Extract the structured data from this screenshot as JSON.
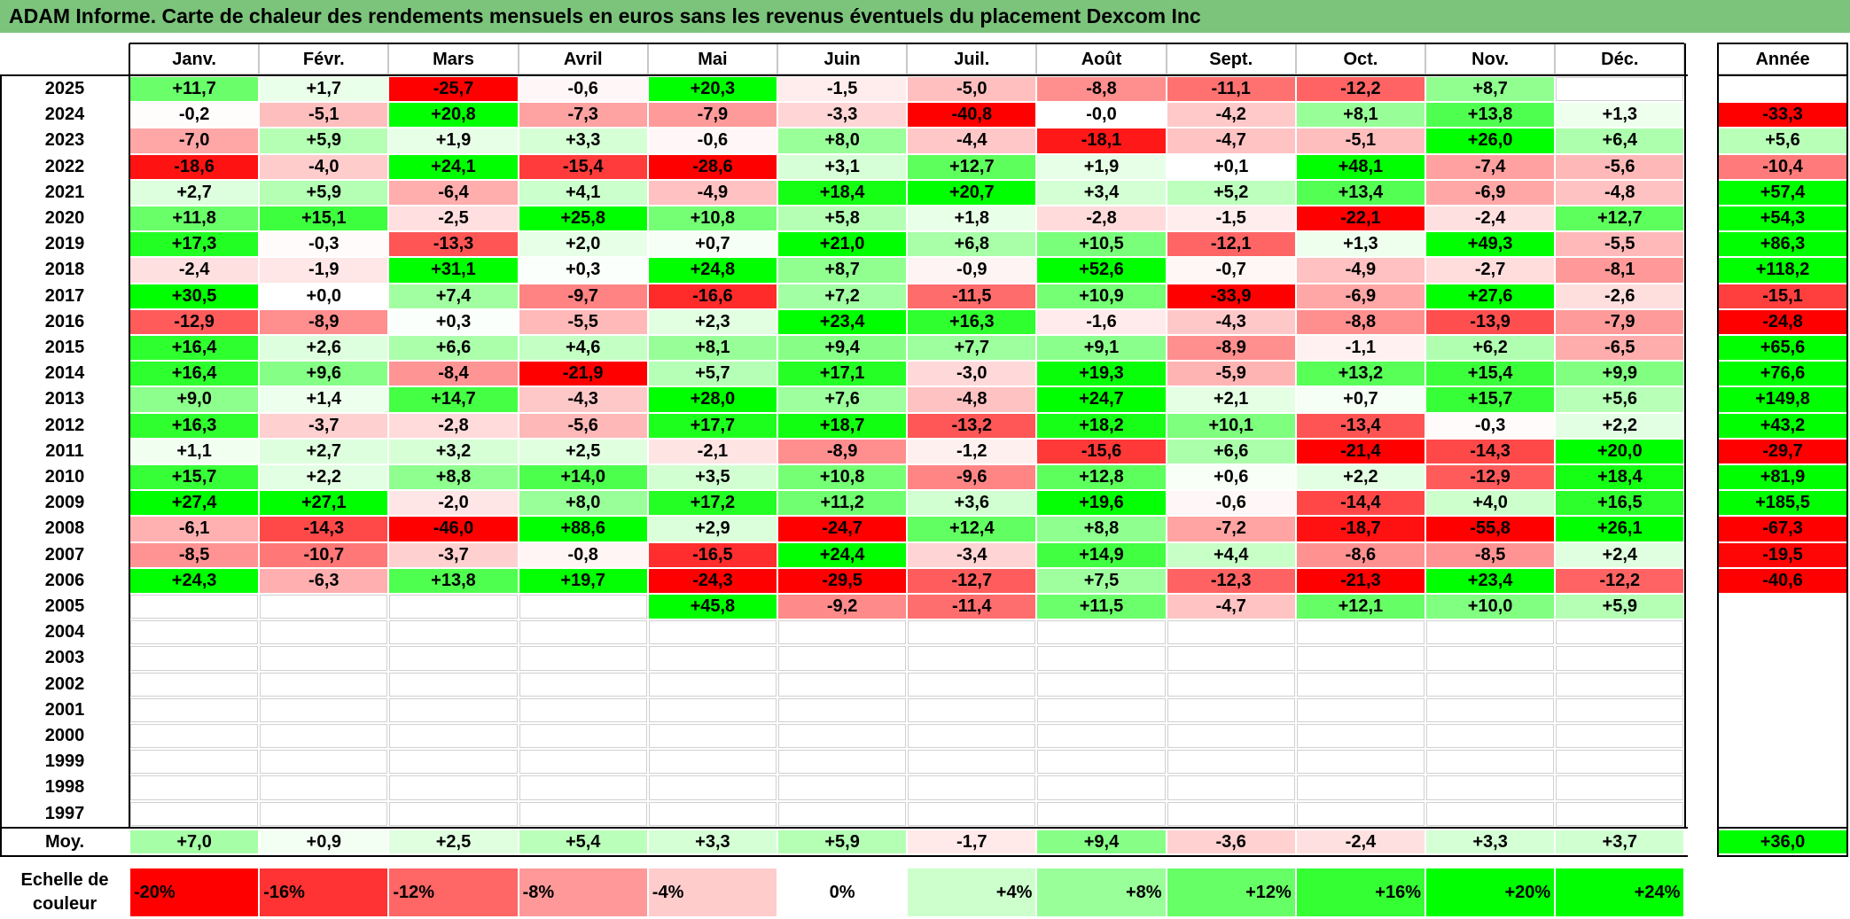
{
  "title": "ADAM Informe. Carte de chaleur des rendements mensuels en euros sans les revenus éventuels du placement Dexcom Inc",
  "chart_data": {
    "type": "heatmap",
    "title": "ADAM Informe. Carte de chaleur des rendements mensuels en euros sans les revenus éventuels du placement Dexcom Inc",
    "months": [
      "Janv.",
      "Févr.",
      "Mars",
      "Avril",
      "Mai",
      "Juin",
      "Juil.",
      "Août",
      "Sept.",
      "Oct.",
      "Nov.",
      "Déc."
    ],
    "year_header": "Année",
    "rows": [
      {
        "year": "2025",
        "months": [
          "+11,7",
          "+1,7",
          "-25,7",
          "-0,6",
          "+20,3",
          "-1,5",
          "-5,0",
          "-8,8",
          "-11,1",
          "-12,2",
          "+8,7",
          ""
        ],
        "annual": ""
      },
      {
        "year": "2024",
        "months": [
          "-0,2",
          "-5,1",
          "+20,8",
          "-7,3",
          "-7,9",
          "-3,3",
          "-40,8",
          "-0,0",
          "-4,2",
          "+8,1",
          "+13,8",
          "+1,3"
        ],
        "annual": "-33,3"
      },
      {
        "year": "2023",
        "months": [
          "-7,0",
          "+5,9",
          "+1,9",
          "+3,3",
          "-0,6",
          "+8,0",
          "-4,4",
          "-18,1",
          "-4,7",
          "-5,1",
          "+26,0",
          "+6,4"
        ],
        "annual": "+5,6"
      },
      {
        "year": "2022",
        "months": [
          "-18,6",
          "-4,0",
          "+24,1",
          "-15,4",
          "-28,6",
          "+3,1",
          "+12,7",
          "+1,9",
          "+0,1",
          "+48,1",
          "-7,4",
          "-5,6"
        ],
        "annual": "-10,4"
      },
      {
        "year": "2021",
        "months": [
          "+2,7",
          "+5,9",
          "-6,4",
          "+4,1",
          "-4,9",
          "+18,4",
          "+20,7",
          "+3,4",
          "+5,2",
          "+13,4",
          "-6,9",
          "-4,8"
        ],
        "annual": "+57,4"
      },
      {
        "year": "2020",
        "months": [
          "+11,8",
          "+15,1",
          "-2,5",
          "+25,8",
          "+10,8",
          "+5,8",
          "+1,8",
          "-2,8",
          "-1,5",
          "-22,1",
          "-2,4",
          "+12,7"
        ],
        "annual": "+54,3"
      },
      {
        "year": "2019",
        "months": [
          "+17,3",
          "-0,3",
          "-13,3",
          "+2,0",
          "+0,7",
          "+21,0",
          "+6,8",
          "+10,5",
          "-12,1",
          "+1,3",
          "+49,3",
          "-5,5"
        ],
        "annual": "+86,3"
      },
      {
        "year": "2018",
        "months": [
          "-2,4",
          "-1,9",
          "+31,1",
          "+0,3",
          "+24,8",
          "+8,7",
          "-0,9",
          "+52,6",
          "-0,7",
          "-4,9",
          "-2,7",
          "-8,1"
        ],
        "annual": "+118,2"
      },
      {
        "year": "2017",
        "months": [
          "+30,5",
          "+0,0",
          "+7,4",
          "-9,7",
          "-16,6",
          "+7,2",
          "-11,5",
          "+10,9",
          "-33,9",
          "-6,9",
          "+27,6",
          "-2,6"
        ],
        "annual": "-15,1"
      },
      {
        "year": "2016",
        "months": [
          "-12,9",
          "-8,9",
          "+0,3",
          "-5,5",
          "+2,3",
          "+23,4",
          "+16,3",
          "-1,6",
          "-4,3",
          "-8,8",
          "-13,9",
          "-7,9"
        ],
        "annual": "-24,8"
      },
      {
        "year": "2015",
        "months": [
          "+16,4",
          "+2,6",
          "+6,6",
          "+4,6",
          "+8,1",
          "+9,4",
          "+7,7",
          "+9,1",
          "-8,9",
          "-1,1",
          "+6,2",
          "-6,5"
        ],
        "annual": "+65,6"
      },
      {
        "year": "2014",
        "months": [
          "+16,4",
          "+9,6",
          "-8,4",
          "-21,9",
          "+5,7",
          "+17,1",
          "-3,0",
          "+19,3",
          "-5,9",
          "+13,2",
          "+15,4",
          "+9,9"
        ],
        "annual": "+76,6"
      },
      {
        "year": "2013",
        "months": [
          "+9,0",
          "+1,4",
          "+14,7",
          "-4,3",
          "+28,0",
          "+7,6",
          "-4,8",
          "+24,7",
          "+2,1",
          "+0,7",
          "+15,7",
          "+5,6"
        ],
        "annual": "+149,8"
      },
      {
        "year": "2012",
        "months": [
          "+16,3",
          "-3,7",
          "-2,8",
          "-5,6",
          "+17,7",
          "+18,7",
          "-13,2",
          "+18,2",
          "+10,1",
          "-13,4",
          "-0,3",
          "+2,2"
        ],
        "annual": "+43,2"
      },
      {
        "year": "2011",
        "months": [
          "+1,1",
          "+2,7",
          "+3,2",
          "+2,5",
          "-2,1",
          "-8,9",
          "-1,2",
          "-15,6",
          "+6,6",
          "-21,4",
          "-14,3",
          "+20,0"
        ],
        "annual": "-29,7"
      },
      {
        "year": "2010",
        "months": [
          "+15,7",
          "+2,2",
          "+8,8",
          "+14,0",
          "+3,5",
          "+10,8",
          "-9,6",
          "+12,8",
          "+0,6",
          "+2,2",
          "-12,9",
          "+18,4"
        ],
        "annual": "+81,9"
      },
      {
        "year": "2009",
        "months": [
          "+27,4",
          "+27,1",
          "-2,0",
          "+8,0",
          "+17,2",
          "+11,2",
          "+3,6",
          "+19,6",
          "-0,6",
          "-14,4",
          "+4,0",
          "+16,5"
        ],
        "annual": "+185,5"
      },
      {
        "year": "2008",
        "months": [
          "-6,1",
          "-14,3",
          "-46,0",
          "+88,6",
          "+2,9",
          "-24,7",
          "+12,4",
          "+8,8",
          "-7,2",
          "-18,7",
          "-55,8",
          "+26,1"
        ],
        "annual": "-67,3"
      },
      {
        "year": "2007",
        "months": [
          "-8,5",
          "-10,7",
          "-3,7",
          "-0,8",
          "-16,5",
          "+24,4",
          "-3,4",
          "+14,9",
          "+4,4",
          "-8,6",
          "-8,5",
          "+2,4"
        ],
        "annual": "-19,5"
      },
      {
        "year": "2006",
        "months": [
          "+24,3",
          "-6,3",
          "+13,8",
          "+19,7",
          "-24,3",
          "-29,5",
          "-12,7",
          "+7,5",
          "-12,3",
          "-21,3",
          "+23,4",
          "-12,2"
        ],
        "annual": "-40,6"
      },
      {
        "year": "2005",
        "months": [
          "",
          "",
          "",
          "",
          "+45,8",
          "-9,2",
          "-11,4",
          "+11,5",
          "-4,7",
          "+12,1",
          "+10,0",
          "+5,9"
        ],
        "annual": ""
      },
      {
        "year": "2004",
        "months": [
          "",
          "",
          "",
          "",
          "",
          "",
          "",
          "",
          "",
          "",
          "",
          ""
        ],
        "annual": ""
      },
      {
        "year": "2003",
        "months": [
          "",
          "",
          "",
          "",
          "",
          "",
          "",
          "",
          "",
          "",
          "",
          ""
        ],
        "annual": ""
      },
      {
        "year": "2002",
        "months": [
          "",
          "",
          "",
          "",
          "",
          "",
          "",
          "",
          "",
          "",
          "",
          ""
        ],
        "annual": ""
      },
      {
        "year": "2001",
        "months": [
          "",
          "",
          "",
          "",
          "",
          "",
          "",
          "",
          "",
          "",
          "",
          ""
        ],
        "annual": ""
      },
      {
        "year": "2000",
        "months": [
          "",
          "",
          "",
          "",
          "",
          "",
          "",
          "",
          "",
          "",
          "",
          ""
        ],
        "annual": ""
      },
      {
        "year": "1999",
        "months": [
          "",
          "",
          "",
          "",
          "",
          "",
          "",
          "",
          "",
          "",
          "",
          ""
        ],
        "annual": ""
      },
      {
        "year": "1998",
        "months": [
          "",
          "",
          "",
          "",
          "",
          "",
          "",
          "",
          "",
          "",
          "",
          ""
        ],
        "annual": ""
      },
      {
        "year": "1997",
        "months": [
          "",
          "",
          "",
          "",
          "",
          "",
          "",
          "",
          "",
          "",
          "",
          ""
        ],
        "annual": ""
      }
    ],
    "average": {
      "label": "Moy.",
      "months": [
        "+7,0",
        "+0,9",
        "+2,5",
        "+5,4",
        "+3,3",
        "+5,9",
        "-1,7",
        "+9,4",
        "-3,6",
        "-2,4",
        "+3,3",
        "+3,7"
      ],
      "annual": "+36,0"
    },
    "color_scale": {
      "label": "Echelle de couleur",
      "stops": [
        {
          "label": "-20%",
          "value": -20,
          "color": "#ff0000"
        },
        {
          "label": "-16%",
          "value": -16,
          "color": "#ff3333"
        },
        {
          "label": "-12%",
          "value": -12,
          "color": "#ff6666"
        },
        {
          "label": "-8%",
          "value": -8,
          "color": "#ff9999"
        },
        {
          "label": "-4%",
          "value": -4,
          "color": "#ffcccc"
        },
        {
          "label": "0%",
          "value": 0,
          "color": "#ffffff"
        },
        {
          "label": "+4%",
          "value": 4,
          "color": "#ccffcc"
        },
        {
          "label": "+8%",
          "value": 8,
          "color": "#99ff99"
        },
        {
          "label": "+12%",
          "value": 12,
          "color": "#66ff66"
        },
        {
          "label": "+16%",
          "value": 16,
          "color": "#33ff33"
        },
        {
          "label": "+20%",
          "value": 20,
          "color": "#00ff00"
        },
        {
          "label": "+24%",
          "value": 24,
          "color": "#00ff00"
        }
      ]
    }
  }
}
